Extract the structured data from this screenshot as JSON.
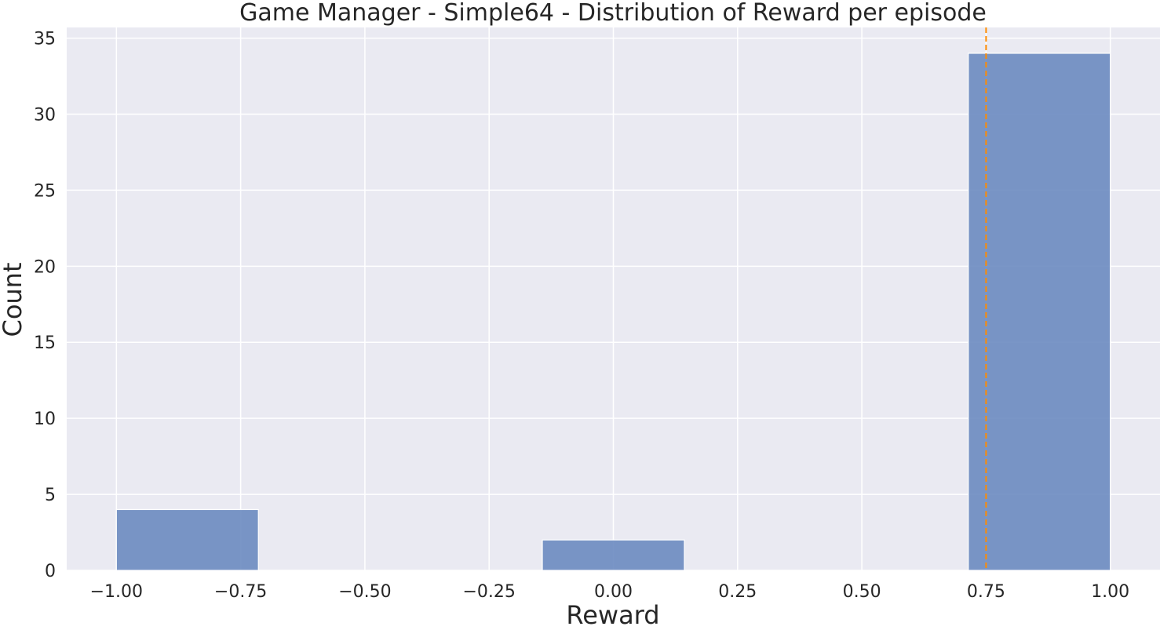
{
  "chart_data": {
    "type": "bar",
    "title": "Game Manager - Simple64 - Distribution of Reward per episode",
    "xlabel": "Reward",
    "ylabel": "Count",
    "bins": [
      {
        "x0": -1.0,
        "x1": -0.7143,
        "count": 4
      },
      {
        "x0": -0.1429,
        "x1": 0.1429,
        "count": 2
      },
      {
        "x0": 0.7143,
        "x1": 1.0,
        "count": 34
      }
    ],
    "mean_line": {
      "x": 0.75,
      "style": "dashed",
      "color": "#ff8c00"
    },
    "xticks": [
      -1.0,
      -0.75,
      -0.5,
      -0.25,
      0.0,
      0.25,
      0.5,
      0.75,
      1.0
    ],
    "xtick_labels": [
      "−1.00",
      "−0.75",
      "−0.50",
      "−0.25",
      "0.00",
      "0.25",
      "0.50",
      "0.75",
      "1.00"
    ],
    "yticks": [
      0,
      5,
      10,
      15,
      20,
      25,
      30,
      35
    ],
    "ytick_labels": [
      "0",
      "5",
      "10",
      "15",
      "20",
      "25",
      "30",
      "35"
    ],
    "xlim": [
      -1.1,
      1.1
    ],
    "ylim": [
      0,
      35.7
    ],
    "grid": true,
    "colors": {
      "bar": "#6b8bc0",
      "plot_bg": "#eaeaf2",
      "grid": "#ffffff"
    }
  }
}
